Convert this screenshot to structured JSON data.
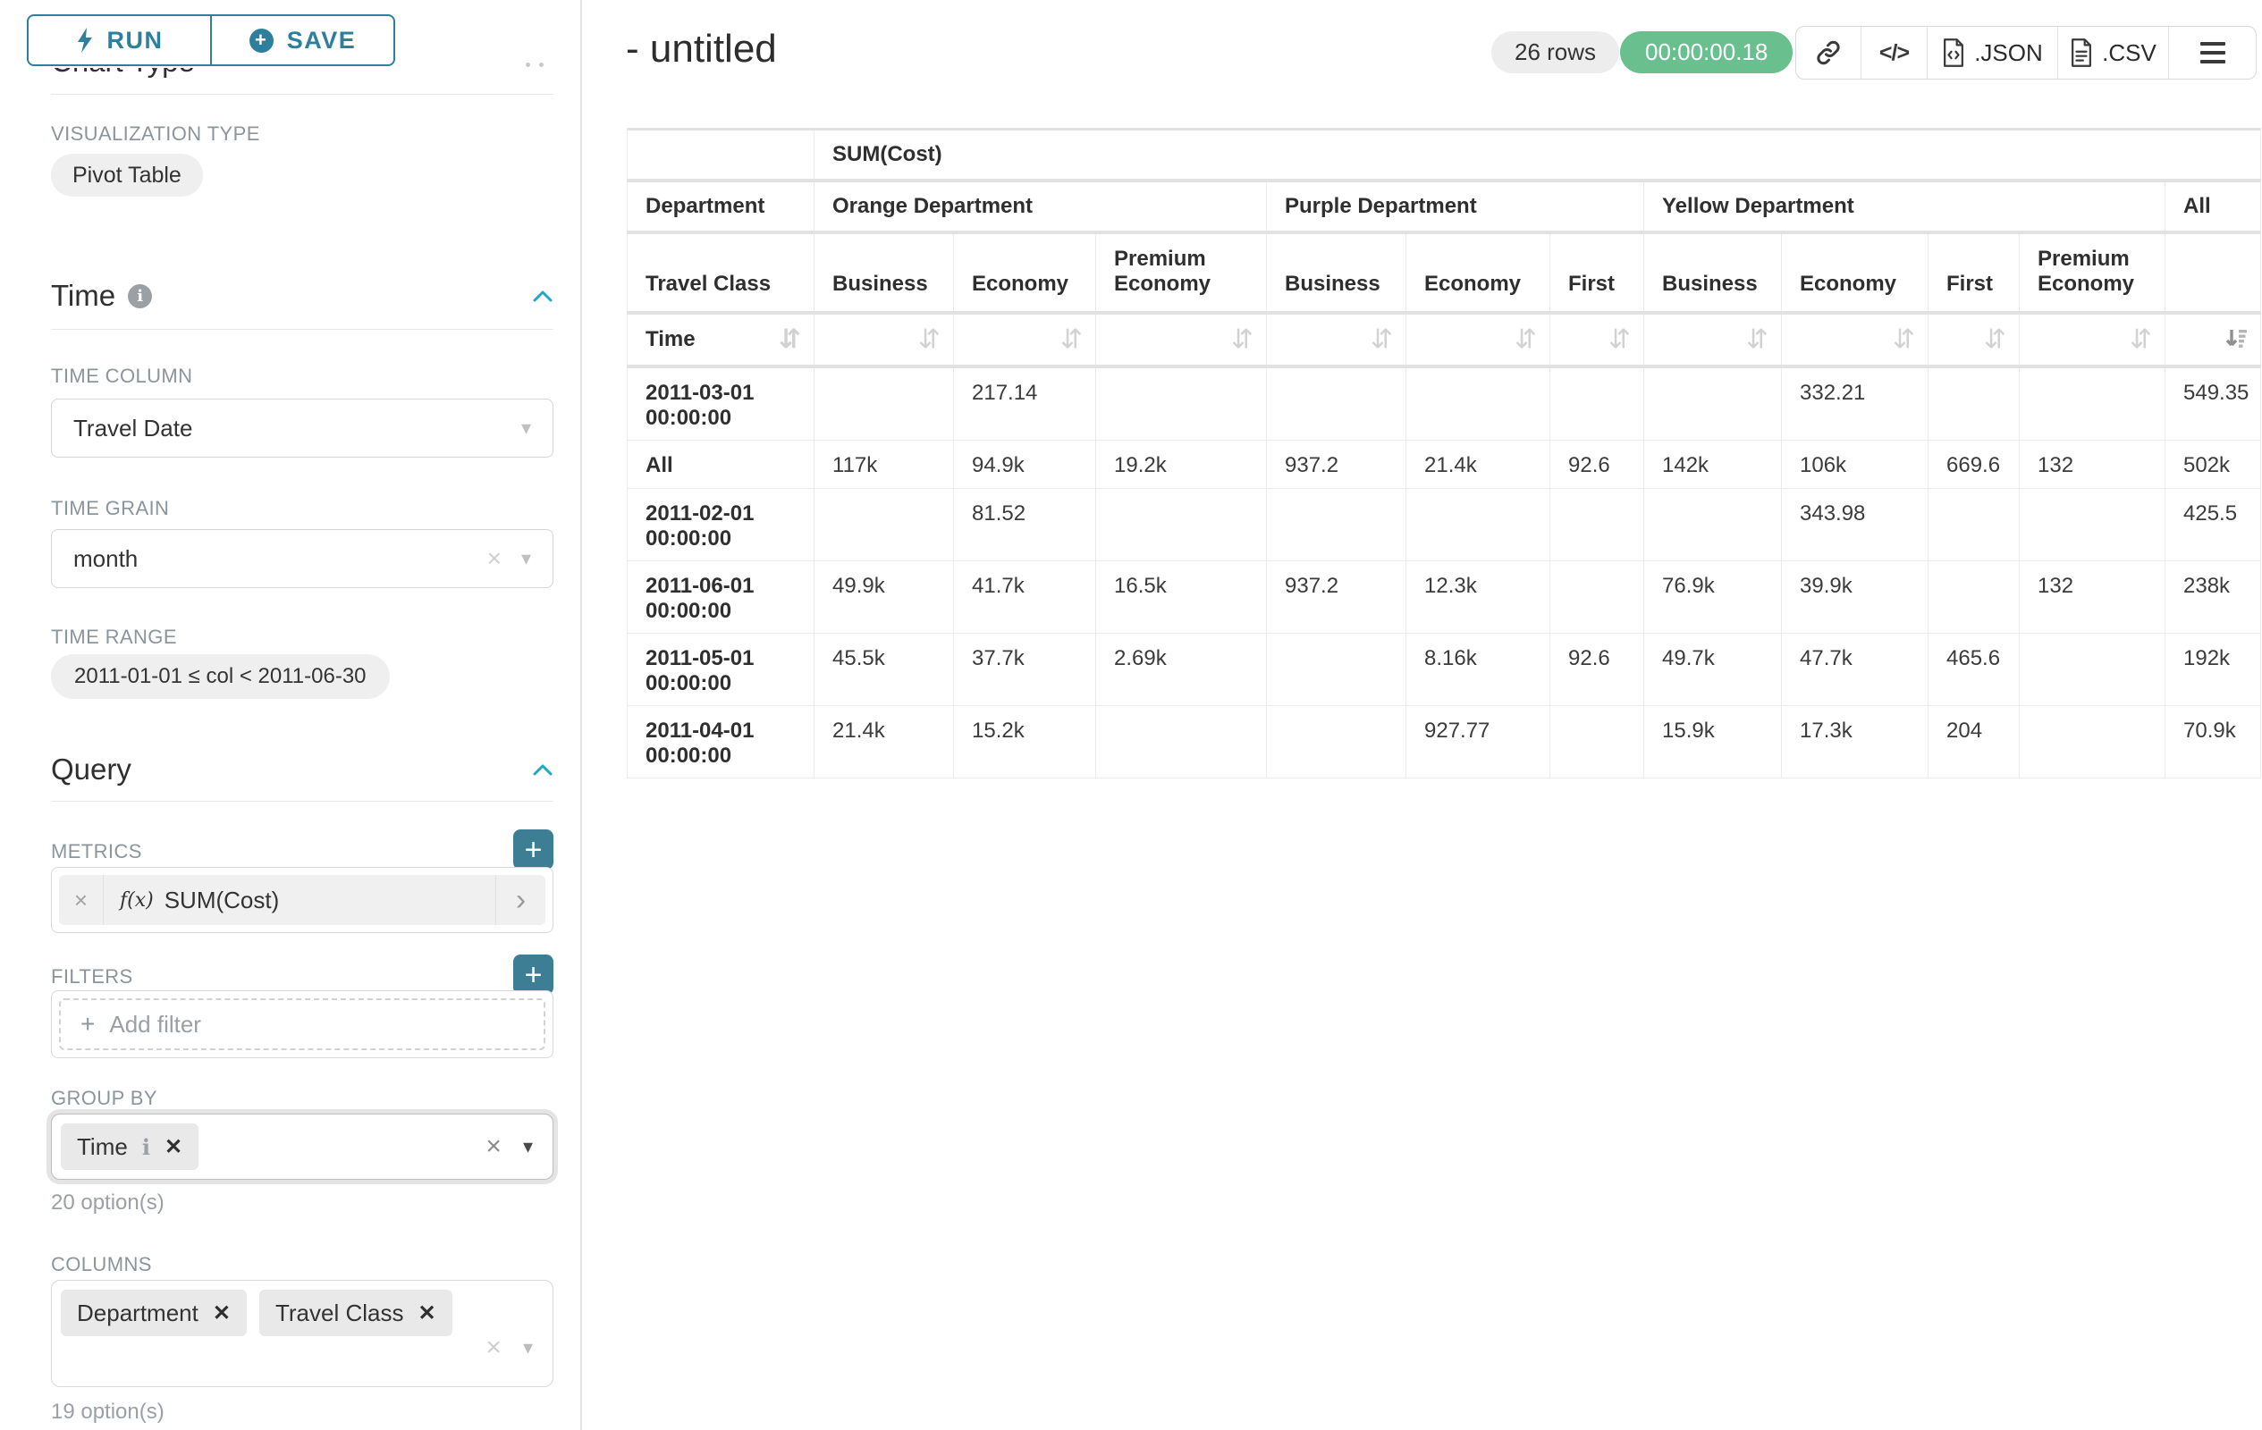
{
  "icons": {
    "sort": "⇵",
    "clear": "×",
    "remove": "✕",
    "caret_down": "▾",
    "chevron_right": "›",
    "code": "</>",
    "plus": "+",
    "info_i": "i"
  },
  "sidebar": {
    "run_label": "RUN",
    "save_label": "SAVE",
    "chart_type_heading": "Chart Type",
    "viz_label": "VISUALIZATION TYPE",
    "viz_value": "Pivot Table",
    "time": {
      "heading": "Time",
      "column_label": "TIME COLUMN",
      "column_value": "Travel Date",
      "grain_label": "TIME GRAIN",
      "grain_value": "month",
      "range_label": "TIME RANGE",
      "range_value": "2011-01-01 ≤ col < 2011-06-30"
    },
    "query": {
      "heading": "Query",
      "metrics_label": "METRICS",
      "metric": {
        "fx": "f(x)",
        "label": "SUM(Cost)"
      },
      "filters_label": "FILTERS",
      "add_filter": "Add filter",
      "group_by_label": "GROUP BY",
      "group_by_chip": "Time",
      "group_by_hint": "20 option(s)",
      "columns_label": "COLUMNS",
      "column_chips": [
        "Department",
        "Travel Class"
      ],
      "columns_hint": "19 option(s)"
    }
  },
  "header": {
    "title": "- untitled",
    "row_count": "26 rows",
    "timer": "00:00:00.18",
    "export_json": ".JSON",
    "export_csv": ".CSV"
  },
  "pivot": {
    "metric_header": "SUM(Cost)",
    "row_dim_label": "Department",
    "col_dim_label": "Travel Class",
    "time_label": "Time",
    "col_groups": [
      {
        "label": "Orange Department",
        "span": 3
      },
      {
        "label": "Purple Department",
        "span": 3
      },
      {
        "label": "Yellow Department",
        "span": 4
      },
      {
        "label": "All",
        "span": 1
      }
    ],
    "col_headers": [
      "Business",
      "Economy",
      "Premium Economy",
      "Business",
      "Economy",
      "First",
      "Business",
      "Economy",
      "First",
      "Premium Economy",
      ""
    ],
    "rows": [
      {
        "label": "2011-03-01 00:00:00",
        "values": [
          "",
          "217.14",
          "",
          "",
          "",
          "",
          "",
          "332.21",
          "",
          "",
          "549.35"
        ]
      },
      {
        "label": "All",
        "values": [
          "117k",
          "94.9k",
          "19.2k",
          "937.2",
          "21.4k",
          "92.6",
          "142k",
          "106k",
          "669.6",
          "132",
          "502k"
        ]
      },
      {
        "label": "2011-02-01 00:00:00",
        "values": [
          "",
          "81.52",
          "",
          "",
          "",
          "",
          "",
          "343.98",
          "",
          "",
          "425.5"
        ]
      },
      {
        "label": "2011-06-01 00:00:00",
        "values": [
          "49.9k",
          "41.7k",
          "16.5k",
          "937.2",
          "12.3k",
          "",
          "76.9k",
          "39.9k",
          "",
          "132",
          "238k"
        ]
      },
      {
        "label": "2011-05-01 00:00:00",
        "values": [
          "45.5k",
          "37.7k",
          "2.69k",
          "",
          "8.16k",
          "92.6",
          "49.7k",
          "47.7k",
          "465.6",
          "",
          "192k"
        ]
      },
      {
        "label": "2011-04-01 00:00:00",
        "values": [
          "21.4k",
          "15.2k",
          "",
          "",
          "927.77",
          "",
          "15.9k",
          "17.3k",
          "204",
          "",
          "70.9k"
        ]
      }
    ]
  }
}
